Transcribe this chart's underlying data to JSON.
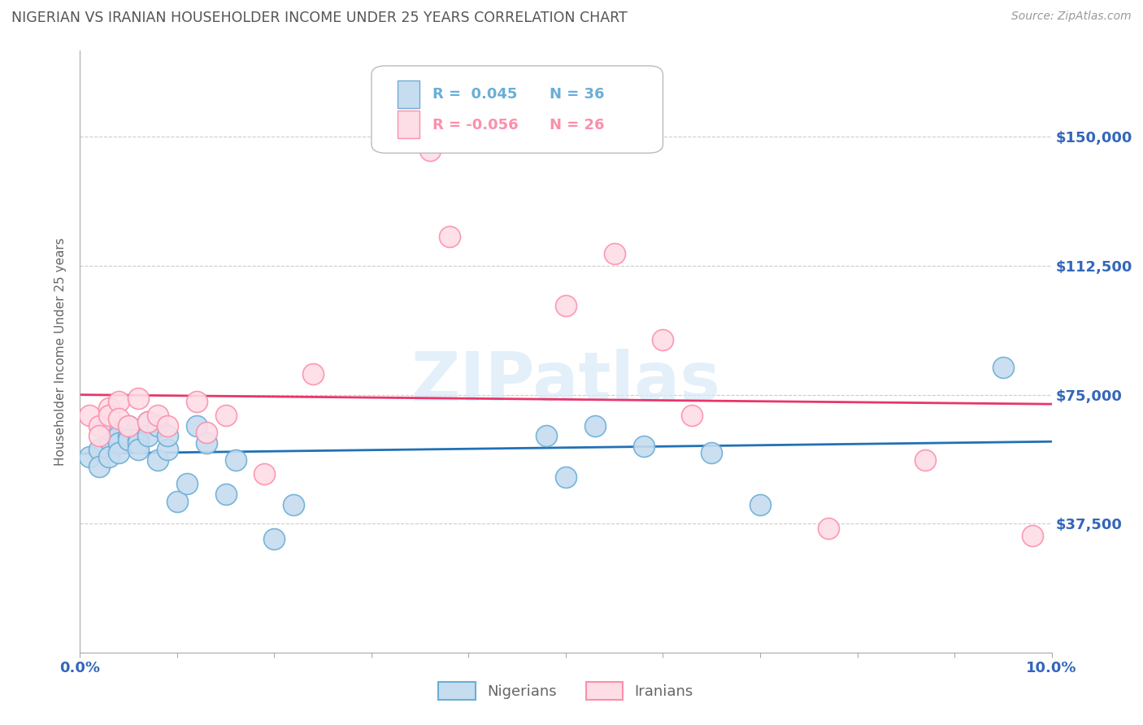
{
  "title": "NIGERIAN VS IRANIAN HOUSEHOLDER INCOME UNDER 25 YEARS CORRELATION CHART",
  "source": "Source: ZipAtlas.com",
  "ylabel": "Householder Income Under 25 years",
  "xlim": [
    0.0,
    0.1
  ],
  "ylim": [
    0,
    175000
  ],
  "yticks": [
    0,
    37500,
    75000,
    112500,
    150000
  ],
  "ytick_labels": [
    "",
    "$37,500",
    "$75,000",
    "$112,500",
    "$150,000"
  ],
  "xticks": [
    0.0,
    0.01,
    0.02,
    0.03,
    0.04,
    0.05,
    0.06,
    0.07,
    0.08,
    0.09,
    0.1
  ],
  "xtick_labels": [
    "0.0%",
    "",
    "",
    "",
    "",
    "",
    "",
    "",
    "",
    "",
    "10.0%"
  ],
  "nigerian_color": "#6BAED6",
  "nigerian_color_light": "#C6DCEF",
  "iranian_color": "#FC8FAB",
  "iranian_color_light": "#FDDDE6",
  "trendline_nigerian_color": "#2171B5",
  "trendline_iranian_color": "#E8366A",
  "background_color": "#FFFFFF",
  "watermark": "ZIPatlas",
  "nigerian_x": [
    0.001,
    0.002,
    0.002,
    0.003,
    0.003,
    0.003,
    0.004,
    0.004,
    0.004,
    0.005,
    0.005,
    0.005,
    0.006,
    0.006,
    0.006,
    0.007,
    0.007,
    0.008,
    0.008,
    0.009,
    0.009,
    0.01,
    0.011,
    0.012,
    0.013,
    0.015,
    0.016,
    0.02,
    0.022,
    0.048,
    0.05,
    0.053,
    0.058,
    0.065,
    0.07,
    0.095
  ],
  "nigerian_y": [
    57000,
    59000,
    54000,
    62000,
    65000,
    57000,
    63000,
    61000,
    58000,
    63000,
    66000,
    62000,
    62000,
    61000,
    59000,
    67000,
    63000,
    66000,
    56000,
    59000,
    63000,
    44000,
    49000,
    66000,
    61000,
    46000,
    56000,
    33000,
    43000,
    63000,
    51000,
    66000,
    60000,
    58000,
    43000,
    83000
  ],
  "iranian_x": [
    0.001,
    0.002,
    0.002,
    0.003,
    0.003,
    0.004,
    0.004,
    0.005,
    0.006,
    0.007,
    0.008,
    0.009,
    0.012,
    0.013,
    0.015,
    0.019,
    0.024,
    0.036,
    0.038,
    0.05,
    0.055,
    0.06,
    0.063,
    0.077,
    0.087,
    0.098
  ],
  "iranian_y": [
    69000,
    66000,
    63000,
    71000,
    69000,
    73000,
    68000,
    66000,
    74000,
    67000,
    69000,
    66000,
    73000,
    64000,
    69000,
    52000,
    81000,
    146000,
    121000,
    101000,
    116000,
    91000,
    69000,
    36000,
    56000,
    34000
  ],
  "grid_color": "#CCCCCC",
  "grid_linestyle": "--",
  "title_color": "#555555",
  "axis_label_color": "#666666",
  "tick_label_color": "#3366BB"
}
